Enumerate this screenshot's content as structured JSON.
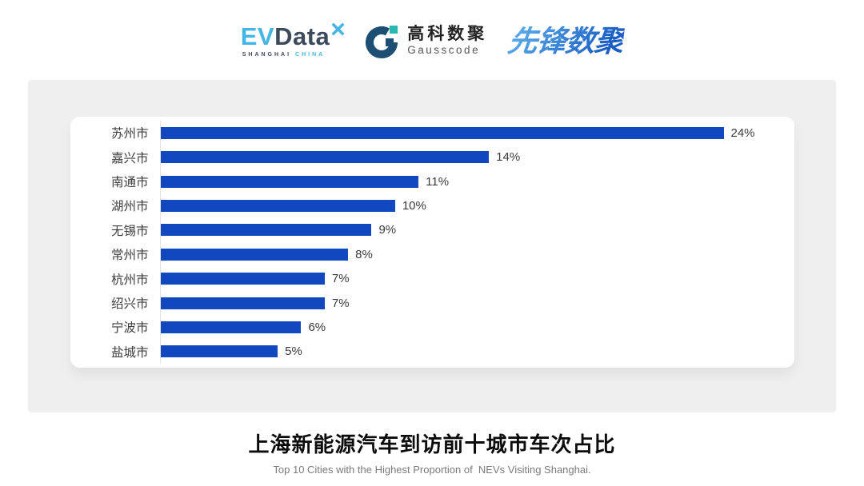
{
  "logos": {
    "evdata": {
      "ev": "EV",
      "data": "Data",
      "sub_left": "SHANGHAI",
      "sub_right": "CHINA"
    },
    "gausscode": {
      "cn": "高科数聚",
      "en": "Gausscode"
    },
    "xianfeng": {
      "text": "先锋数聚"
    }
  },
  "chart_data": {
    "type": "bar",
    "orientation": "horizontal",
    "title": "上海新能源汽车到访前十城市车次占比",
    "subtitle": "Top 10 Cities with the Highest Proportion of  NEVs Visiting Shanghai.",
    "categories": [
      "苏州市",
      "嘉兴市",
      "南通市",
      "湖州市",
      "无锡市",
      "常州市",
      "杭州市",
      "绍兴市",
      "宁波市",
      "盐城市"
    ],
    "values": [
      24,
      14,
      11,
      10,
      9,
      8,
      7,
      7,
      6,
      5
    ],
    "value_labels": [
      "24%",
      "14%",
      "11%",
      "10%",
      "9%",
      "8%",
      "7%",
      "7%",
      "6%",
      "5%"
    ],
    "unit": "%",
    "axis_max": 27,
    "xlim": [
      0,
      27
    ],
    "grid": false,
    "legend": false,
    "bar_color": "#1148c0"
  },
  "caption": {
    "title": "上海新能源汽车到访前十城市车次占比",
    "subtitle": "Top 10 Cities with the Highest Proportion of  NEVs Visiting Shanghai."
  },
  "colors": {
    "bar_blue": "#1148c0",
    "evdata_light_blue": "#45b5e5",
    "evdata_navy": "#3c4b5c",
    "gausscode_navy": "#1d4e74",
    "gausscode_teal": "#27b8b0",
    "xianfeng_gradient_from": "#58a8e8",
    "xianfeng_gradient_to": "#1b5ec4",
    "panel_gray": "#efefef"
  }
}
